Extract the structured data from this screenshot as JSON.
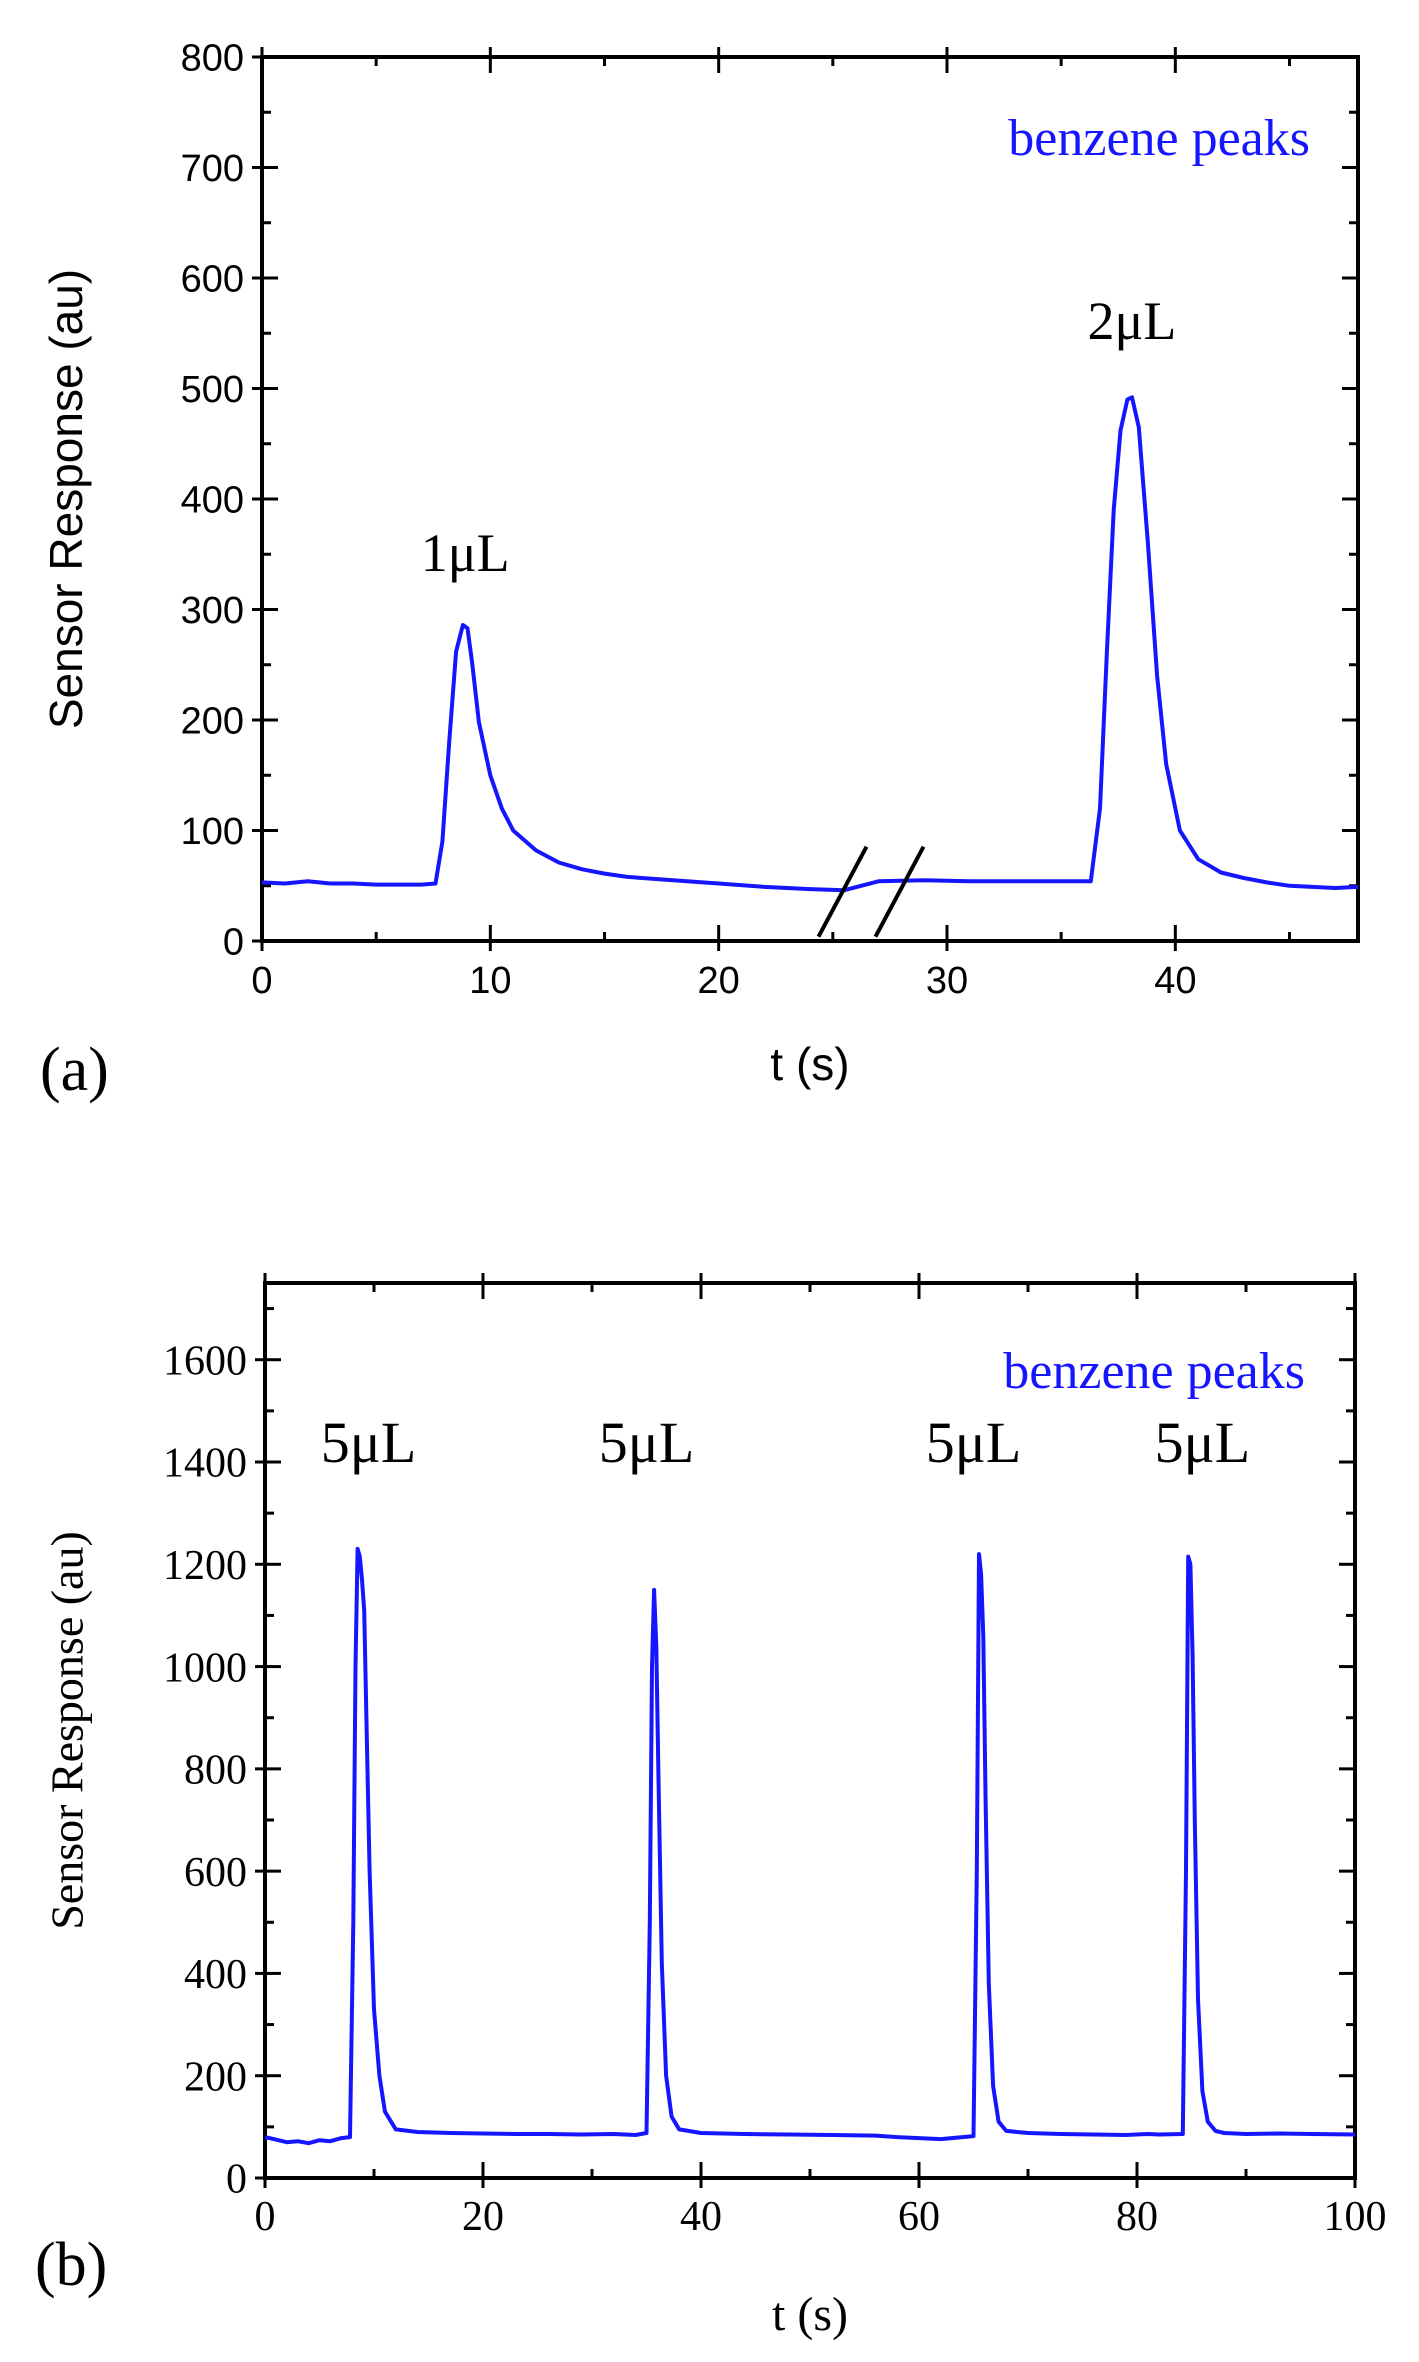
{
  "chart_data": [
    {
      "panel_label": "(a)",
      "type": "line",
      "title": "",
      "xlabel": "t (s)",
      "ylabel": "Sensor Response (au)",
      "xlim": [
        0,
        48
      ],
      "ylim": [
        0,
        800
      ],
      "xticks": [
        0,
        10,
        20,
        30,
        40
      ],
      "yticks": [
        0,
        100,
        200,
        300,
        400,
        500,
        600,
        700,
        800
      ],
      "grid": false,
      "legend": "none",
      "axis_break_x": 27,
      "series_color": "#1515ff",
      "text_color": "#000000",
      "annotation_title": "benzene peaks",
      "annotations": [
        {
          "text": "1μL",
          "x": 8.9,
          "y": 335
        },
        {
          "text": "2μL",
          "x": 38.1,
          "y": 545
        }
      ],
      "series": [
        {
          "name": "benzene peaks",
          "x": [
            0,
            1,
            2,
            3,
            4,
            5,
            6,
            7,
            7.6,
            7.9,
            8.2,
            8.5,
            8.8,
            9.0,
            9.2,
            9.5,
            10,
            10.5,
            11,
            12,
            13,
            14,
            15,
            16,
            18,
            20,
            22,
            24,
            25.5,
            27,
            29,
            31,
            33,
            35,
            36.3,
            36.7,
            37.0,
            37.3,
            37.6,
            37.9,
            38.1,
            38.4,
            38.8,
            39.2,
            39.6,
            40.2,
            41,
            42,
            43,
            44,
            45,
            46,
            47,
            48
          ],
          "y": [
            53,
            52,
            54,
            52,
            52,
            51,
            51,
            51,
            52,
            90,
            180,
            262,
            286,
            283,
            252,
            198,
            150,
            120,
            100,
            82,
            71,
            65,
            61,
            58,
            55,
            52,
            49,
            47,
            46,
            54,
            55,
            54,
            54,
            54,
            54,
            120,
            260,
            390,
            462,
            490,
            492,
            465,
            360,
            240,
            160,
            100,
            74,
            62,
            57,
            53,
            50,
            49,
            48,
            49
          ]
        }
      ]
    },
    {
      "panel_label": "(b)",
      "type": "line",
      "title": "",
      "xlabel": "t (s)",
      "ylabel": "Sensor Response (au)",
      "xlim": [
        0,
        100
      ],
      "ylim": [
        0,
        1750
      ],
      "xticks": [
        0,
        20,
        40,
        60,
        80,
        100
      ],
      "yticks": [
        0,
        200,
        400,
        600,
        800,
        1000,
        1200,
        1400,
        1600
      ],
      "grid": false,
      "legend": "none",
      "series_color": "#1515ff",
      "text_color": "#000000",
      "annotation_title": "benzene peaks",
      "annotations": [
        {
          "text": "5μL",
          "x": 9.5,
          "y": 1400
        },
        {
          "text": "5μL",
          "x": 35,
          "y": 1400
        },
        {
          "text": "5μL",
          "x": 65,
          "y": 1400
        },
        {
          "text": "5μL",
          "x": 86,
          "y": 1400
        }
      ],
      "series": [
        {
          "name": "benzene peaks",
          "x": [
            0,
            1,
            2,
            3,
            4,
            5,
            6,
            7,
            7.8,
            8.1,
            8.3,
            8.5,
            8.7,
            8.9,
            9.1,
            9.3,
            9.6,
            10,
            10.5,
            11,
            12,
            14,
            17,
            20,
            23,
            26,
            29,
            32,
            34,
            35,
            35.3,
            35.5,
            35.7,
            35.9,
            36.1,
            36.4,
            36.8,
            37.3,
            38,
            40,
            44,
            48,
            52,
            56,
            58,
            60,
            62,
            64,
            65.0,
            65.3,
            65.5,
            65.7,
            65.9,
            66.1,
            66.4,
            66.8,
            67.3,
            68,
            70,
            73,
            76,
            79,
            81,
            82,
            84.2,
            84.5,
            84.7,
            84.9,
            85.1,
            85.3,
            85.6,
            86.0,
            86.5,
            87.2,
            88,
            90,
            93,
            96,
            100
          ],
          "y": [
            80,
            75,
            70,
            72,
            68,
            74,
            72,
            78,
            80,
            500,
            1000,
            1230,
            1215,
            1170,
            1110,
            900,
            600,
            330,
            200,
            130,
            95,
            90,
            88,
            87,
            86,
            86,
            85,
            86,
            84,
            88,
            500,
            1000,
            1150,
            1040,
            780,
            420,
            200,
            120,
            95,
            88,
            86,
            85,
            84,
            83,
            80,
            78,
            76,
            80,
            82,
            600,
            1220,
            1180,
            1060,
            750,
            380,
            180,
            110,
            92,
            88,
            86,
            85,
            84,
            86,
            85,
            86,
            600,
            1215,
            1200,
            1020,
            700,
            350,
            170,
            110,
            92,
            88,
            86,
            87,
            86,
            85
          ]
        }
      ]
    }
  ]
}
